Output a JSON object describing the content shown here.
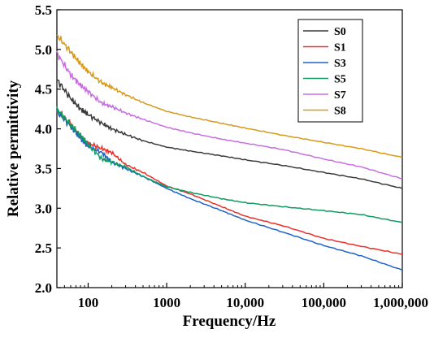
{
  "chart_data": {
    "type": "line",
    "xlabel": "Frequency/Hz",
    "ylabel": "Relative permittivity",
    "x_scale": "log",
    "xlim": [
      40,
      1000000
    ],
    "ylim": [
      2.0,
      5.5
    ],
    "x_ticks": [
      {
        "value": 100,
        "label": "100"
      },
      {
        "value": 1000,
        "label": "1000"
      },
      {
        "value": 10000,
        "label": "10,000"
      },
      {
        "value": 100000,
        "label": "100,000"
      },
      {
        "value": 1000000,
        "label": "1,000,000"
      }
    ],
    "y_ticks": [
      {
        "value": 2.0,
        "label": "2.0"
      },
      {
        "value": 2.5,
        "label": "2.5"
      },
      {
        "value": 3.0,
        "label": "3.0"
      },
      {
        "value": 3.5,
        "label": "3.5"
      },
      {
        "value": 4.0,
        "label": "4.0"
      },
      {
        "value": 4.5,
        "label": "4.5"
      },
      {
        "value": 5.0,
        "label": "5.0"
      },
      {
        "value": 5.5,
        "label": "5.5"
      }
    ],
    "grid": false,
    "legend_position": "top-right",
    "x": [
      40,
      60,
      80,
      100,
      150,
      200,
      300,
      500,
      1000,
      2000,
      5000,
      10000,
      30000,
      100000,
      300000,
      1000000
    ],
    "series": [
      {
        "name": "S0",
        "color": "#3a3a3a",
        "values": [
          4.62,
          4.38,
          4.25,
          4.18,
          4.07,
          4.0,
          3.93,
          3.85,
          3.77,
          3.72,
          3.66,
          3.61,
          3.54,
          3.45,
          3.37,
          3.25
        ]
      },
      {
        "name": "S1",
        "color": "#e8302a",
        "values": [
          4.24,
          4.05,
          3.9,
          3.82,
          3.75,
          3.7,
          3.55,
          3.45,
          3.28,
          3.18,
          3.02,
          2.9,
          2.78,
          2.62,
          2.52,
          2.42
        ]
      },
      {
        "name": "S3",
        "color": "#1f63c6",
        "values": [
          4.22,
          4.03,
          3.88,
          3.78,
          3.7,
          3.58,
          3.5,
          3.4,
          3.25,
          3.12,
          2.97,
          2.85,
          2.7,
          2.53,
          2.4,
          2.22
        ]
      },
      {
        "name": "S5",
        "color": "#109a62",
        "values": [
          4.25,
          4.05,
          3.92,
          3.8,
          3.62,
          3.58,
          3.52,
          3.4,
          3.27,
          3.2,
          3.12,
          3.07,
          3.02,
          2.97,
          2.92,
          2.82
        ]
      },
      {
        "name": "S7",
        "color": "#c86ee0",
        "values": [
          4.95,
          4.68,
          4.55,
          4.47,
          4.32,
          4.28,
          4.2,
          4.12,
          4.02,
          3.95,
          3.87,
          3.82,
          3.74,
          3.62,
          3.52,
          3.37
        ]
      },
      {
        "name": "S8",
        "color": "#d89a17",
        "values": [
          5.18,
          4.97,
          4.82,
          4.72,
          4.58,
          4.52,
          4.43,
          4.33,
          4.22,
          4.15,
          4.07,
          4.01,
          3.92,
          3.83,
          3.75,
          3.64
        ]
      }
    ]
  }
}
